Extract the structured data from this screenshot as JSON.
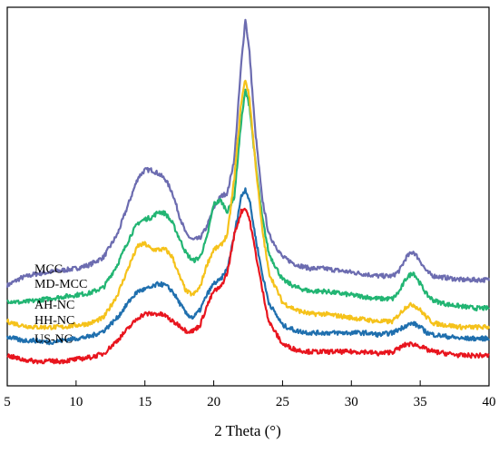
{
  "chart_data": {
    "type": "line",
    "title": "",
    "xlabel": "2 Theta (°)",
    "ylabel": "",
    "xlim": [
      5,
      40
    ],
    "x_ticks": [
      5,
      10,
      15,
      20,
      25,
      30,
      35,
      40
    ],
    "x_tick_labels": [
      "5",
      "10",
      "15",
      "20",
      "25",
      "30",
      "35",
      "40"
    ],
    "y_ticks_shown": false,
    "grid": false,
    "legend": "inline labels at left of each curve",
    "series": [
      {
        "name": "MCC",
        "color": "#6C6CB0",
        "points": [
          [
            5,
            0.265
          ],
          [
            6,
            0.285
          ],
          [
            7,
            0.295
          ],
          [
            8,
            0.3
          ],
          [
            9,
            0.305
          ],
          [
            10,
            0.31
          ],
          [
            11,
            0.32
          ],
          [
            12,
            0.34
          ],
          [
            13,
            0.4
          ],
          [
            14,
            0.5
          ],
          [
            14.5,
            0.55
          ],
          [
            15,
            0.57
          ],
          [
            15.5,
            0.57
          ],
          [
            16,
            0.56
          ],
          [
            16.5,
            0.545
          ],
          [
            17,
            0.51
          ],
          [
            17.5,
            0.45
          ],
          [
            18,
            0.4
          ],
          [
            18.5,
            0.385
          ],
          [
            19,
            0.39
          ],
          [
            19.5,
            0.42
          ],
          [
            20,
            0.47
          ],
          [
            20.5,
            0.5
          ],
          [
            21,
            0.51
          ],
          [
            21.5,
            0.6
          ],
          [
            22,
            0.85
          ],
          [
            22.3,
            0.97
          ],
          [
            22.6,
            0.88
          ],
          [
            23,
            0.68
          ],
          [
            23.5,
            0.5
          ],
          [
            24,
            0.4
          ],
          [
            25,
            0.34
          ],
          [
            26,
            0.32
          ],
          [
            27,
            0.31
          ],
          [
            28,
            0.31
          ],
          [
            29,
            0.305
          ],
          [
            30,
            0.3
          ],
          [
            31,
            0.295
          ],
          [
            32,
            0.29
          ],
          [
            33,
            0.29
          ],
          [
            33.5,
            0.305
          ],
          [
            34,
            0.34
          ],
          [
            34.5,
            0.355
          ],
          [
            35,
            0.33
          ],
          [
            35.5,
            0.3
          ],
          [
            36,
            0.29
          ],
          [
            37,
            0.285
          ],
          [
            38,
            0.28
          ],
          [
            39,
            0.28
          ],
          [
            40,
            0.28
          ]
        ]
      },
      {
        "name": "MD-MCC",
        "color": "#22B573",
        "points": [
          [
            5,
            0.225
          ],
          [
            6,
            0.22
          ],
          [
            7,
            0.225
          ],
          [
            8,
            0.23
          ],
          [
            9,
            0.235
          ],
          [
            10,
            0.24
          ],
          [
            11,
            0.245
          ],
          [
            12,
            0.26
          ],
          [
            13,
            0.32
          ],
          [
            14,
            0.4
          ],
          [
            14.5,
            0.43
          ],
          [
            15,
            0.44
          ],
          [
            15.5,
            0.445
          ],
          [
            16,
            0.46
          ],
          [
            16.5,
            0.455
          ],
          [
            17,
            0.43
          ],
          [
            17.5,
            0.39
          ],
          [
            18,
            0.35
          ],
          [
            18.5,
            0.33
          ],
          [
            19,
            0.34
          ],
          [
            19.5,
            0.39
          ],
          [
            20,
            0.48
          ],
          [
            20.5,
            0.49
          ],
          [
            21,
            0.46
          ],
          [
            21.5,
            0.5
          ],
          [
            22,
            0.7
          ],
          [
            22.3,
            0.78
          ],
          [
            22.6,
            0.74
          ],
          [
            23,
            0.6
          ],
          [
            23.5,
            0.45
          ],
          [
            24,
            0.35
          ],
          [
            25,
            0.28
          ],
          [
            26,
            0.26
          ],
          [
            27,
            0.25
          ],
          [
            28,
            0.25
          ],
          [
            29,
            0.245
          ],
          [
            30,
            0.24
          ],
          [
            31,
            0.235
          ],
          [
            32,
            0.23
          ],
          [
            33,
            0.23
          ],
          [
            33.5,
            0.25
          ],
          [
            34,
            0.285
          ],
          [
            34.5,
            0.3
          ],
          [
            35,
            0.27
          ],
          [
            35.5,
            0.24
          ],
          [
            36,
            0.225
          ],
          [
            37,
            0.215
          ],
          [
            38,
            0.21
          ],
          [
            39,
            0.205
          ],
          [
            40,
            0.205
          ]
        ]
      },
      {
        "name": "AH-NC",
        "color": "#F5C21B",
        "points": [
          [
            5,
            0.17
          ],
          [
            6,
            0.16
          ],
          [
            7,
            0.155
          ],
          [
            8,
            0.155
          ],
          [
            9,
            0.155
          ],
          [
            10,
            0.16
          ],
          [
            11,
            0.165
          ],
          [
            12,
            0.18
          ],
          [
            13,
            0.24
          ],
          [
            14,
            0.33
          ],
          [
            14.5,
            0.37
          ],
          [
            15,
            0.375
          ],
          [
            15.5,
            0.36
          ],
          [
            16,
            0.36
          ],
          [
            16.5,
            0.36
          ],
          [
            17,
            0.34
          ],
          [
            17.5,
            0.29
          ],
          [
            18,
            0.25
          ],
          [
            18.5,
            0.24
          ],
          [
            19,
            0.26
          ],
          [
            19.5,
            0.32
          ],
          [
            20,
            0.36
          ],
          [
            20.5,
            0.37
          ],
          [
            21,
            0.4
          ],
          [
            21.5,
            0.55
          ],
          [
            22,
            0.75
          ],
          [
            22.3,
            0.81
          ],
          [
            22.6,
            0.76
          ],
          [
            23,
            0.6
          ],
          [
            23.5,
            0.42
          ],
          [
            24,
            0.3
          ],
          [
            25,
            0.22
          ],
          [
            26,
            0.2
          ],
          [
            27,
            0.19
          ],
          [
            28,
            0.19
          ],
          [
            29,
            0.185
          ],
          [
            30,
            0.18
          ],
          [
            31,
            0.175
          ],
          [
            32,
            0.17
          ],
          [
            33,
            0.17
          ],
          [
            33.5,
            0.19
          ],
          [
            34,
            0.21
          ],
          [
            34.5,
            0.215
          ],
          [
            35,
            0.2
          ],
          [
            35.5,
            0.18
          ],
          [
            36,
            0.165
          ],
          [
            37,
            0.16
          ],
          [
            38,
            0.155
          ],
          [
            39,
            0.155
          ],
          [
            40,
            0.155
          ]
        ]
      },
      {
        "name": "HH-NC",
        "color": "#1F6FAE",
        "points": [
          [
            5,
            0.13
          ],
          [
            6,
            0.12
          ],
          [
            7,
            0.12
          ],
          [
            8,
            0.115
          ],
          [
            9,
            0.12
          ],
          [
            10,
            0.125
          ],
          [
            11,
            0.13
          ],
          [
            12,
            0.145
          ],
          [
            13,
            0.18
          ],
          [
            14,
            0.23
          ],
          [
            14.5,
            0.25
          ],
          [
            15,
            0.255
          ],
          [
            15.5,
            0.26
          ],
          [
            16,
            0.27
          ],
          [
            16.5,
            0.265
          ],
          [
            17,
            0.25
          ],
          [
            17.5,
            0.22
          ],
          [
            18,
            0.19
          ],
          [
            18.5,
            0.18
          ],
          [
            19,
            0.2
          ],
          [
            19.5,
            0.24
          ],
          [
            20,
            0.27
          ],
          [
            20.5,
            0.28
          ],
          [
            21,
            0.31
          ],
          [
            21.5,
            0.4
          ],
          [
            22,
            0.5
          ],
          [
            22.3,
            0.52
          ],
          [
            22.6,
            0.49
          ],
          [
            23,
            0.4
          ],
          [
            23.5,
            0.3
          ],
          [
            24,
            0.22
          ],
          [
            25,
            0.16
          ],
          [
            26,
            0.145
          ],
          [
            27,
            0.14
          ],
          [
            28,
            0.14
          ],
          [
            29,
            0.14
          ],
          [
            30,
            0.14
          ],
          [
            31,
            0.14
          ],
          [
            32,
            0.135
          ],
          [
            33,
            0.14
          ],
          [
            33.5,
            0.15
          ],
          [
            34,
            0.16
          ],
          [
            34.5,
            0.165
          ],
          [
            35,
            0.155
          ],
          [
            35.5,
            0.14
          ],
          [
            36,
            0.135
          ],
          [
            37,
            0.13
          ],
          [
            38,
            0.125
          ],
          [
            39,
            0.125
          ],
          [
            40,
            0.125
          ]
        ]
      },
      {
        "name": "US-NC",
        "color": "#E8151E",
        "points": [
          [
            5,
            0.08
          ],
          [
            6,
            0.07
          ],
          [
            7,
            0.065
          ],
          [
            8,
            0.065
          ],
          [
            9,
            0.065
          ],
          [
            10,
            0.07
          ],
          [
            11,
            0.075
          ],
          [
            12,
            0.085
          ],
          [
            13,
            0.12
          ],
          [
            14,
            0.16
          ],
          [
            14.5,
            0.18
          ],
          [
            15,
            0.19
          ],
          [
            15.5,
            0.19
          ],
          [
            16,
            0.19
          ],
          [
            16.5,
            0.185
          ],
          [
            17,
            0.17
          ],
          [
            17.5,
            0.16
          ],
          [
            18,
            0.145
          ],
          [
            18.5,
            0.145
          ],
          [
            19,
            0.16
          ],
          [
            19.5,
            0.21
          ],
          [
            20,
            0.25
          ],
          [
            20.5,
            0.26
          ],
          [
            21,
            0.3
          ],
          [
            21.5,
            0.4
          ],
          [
            22,
            0.46
          ],
          [
            22.3,
            0.47
          ],
          [
            22.6,
            0.44
          ],
          [
            23,
            0.36
          ],
          [
            23.5,
            0.26
          ],
          [
            24,
            0.17
          ],
          [
            25,
            0.11
          ],
          [
            26,
            0.095
          ],
          [
            27,
            0.09
          ],
          [
            28,
            0.09
          ],
          [
            29,
            0.09
          ],
          [
            30,
            0.09
          ],
          [
            31,
            0.09
          ],
          [
            32,
            0.085
          ],
          [
            33,
            0.09
          ],
          [
            33.5,
            0.1
          ],
          [
            34,
            0.11
          ],
          [
            34.5,
            0.11
          ],
          [
            35,
            0.105
          ],
          [
            35.5,
            0.095
          ],
          [
            36,
            0.09
          ],
          [
            37,
            0.085
          ],
          [
            38,
            0.08
          ],
          [
            39,
            0.08
          ],
          [
            40,
            0.08
          ]
        ]
      }
    ]
  }
}
